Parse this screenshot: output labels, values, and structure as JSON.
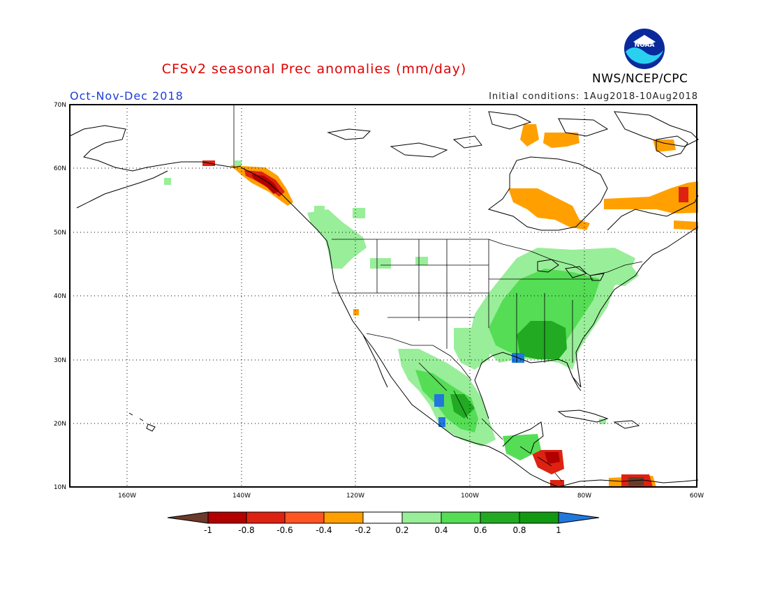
{
  "header": {
    "title": "CFSv2 seasonal Prec anomalies (mm/day)",
    "season": "Oct-Nov-Dec 2018",
    "initial_conditions": "Initial conditions: 1Aug2018-10Aug2018",
    "agency": "NWS/NCEP/CPC",
    "logo_text": "NOAA"
  },
  "map": {
    "lon_range": [
      -172,
      -60
    ],
    "lat_range": [
      10,
      70
    ],
    "lon_ticks": [
      "160W",
      "140W",
      "120W",
      "100W",
      "80W",
      "60W"
    ],
    "lat_ticks": [
      "70N",
      "60N",
      "50N",
      "40N",
      "30N",
      "20N",
      "10N"
    ],
    "grid": true
  },
  "colorbar": {
    "labels": [
      "-1",
      "-0.8",
      "-0.6",
      "-0.4",
      "-0.2",
      "0.2",
      "0.4",
      "0.6",
      "0.8",
      "1"
    ],
    "colors": [
      "#6b3a2a",
      "#b20000",
      "#dd2211",
      "#ff5522",
      "#ffa000",
      "#ffffff",
      "#99ee99",
      "#55dd55",
      "#22aa22",
      "#119911",
      "#2277dd"
    ]
  },
  "colors": {
    "title": "#e00000",
    "season": "#1f3cdc"
  }
}
